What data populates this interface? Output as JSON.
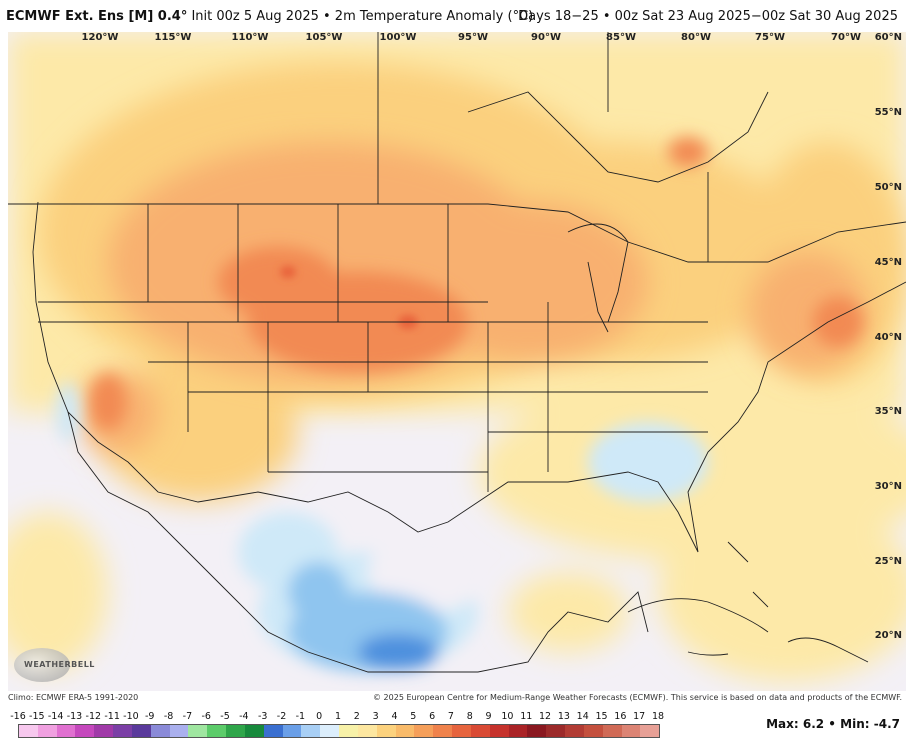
{
  "header": {
    "model": "ECMWF Ext. Ens [M] 0.4",
    "degree_sign": "°",
    "init": " Init 00z 5 Aug 2025 • 2m Temperature Anomaly (°C)",
    "valid": "Days 18−25 • 00z Sat 23 Aug 2025−00z Sat 30 Aug 2025"
  },
  "map": {
    "longitude_labels": [
      "120°W",
      "115°W",
      "110°W",
      "105°W",
      "100°W",
      "95°W",
      "90°W",
      "85°W",
      "80°W",
      "75°W",
      "70°W"
    ],
    "latitude_labels": [
      "60°N",
      "55°N",
      "50°N",
      "45°N",
      "40°N",
      "35°N",
      "30°N",
      "25°N",
      "20°N"
    ],
    "colors": {
      "near_zero": "#f3f0f6",
      "cool_light": "#cfe9f8",
      "cool": "#8fc5ef",
      "cool_strong": "#4e90de",
      "warm_pale": "#fde9a8",
      "warm_light": "#fbd07e",
      "warm": "#f8b070",
      "warm_strong": "#f28a52",
      "warm_max": "#e8623a",
      "border": "#222222"
    }
  },
  "logo": {
    "text": "WEATHERBELL"
  },
  "footer": {
    "climo": "Climo: ECMWF ERA-5 1991-2020",
    "copyright": "© 2025 European Centre for Medium-Range Weather Forecasts (ECMWF). This service is based on data and products of the ECMWF.",
    "max_label": "Max:",
    "max_value": "6.2",
    "separator": " • ",
    "min_label": "Min:",
    "min_value": "-4.7",
    "scale_labels": [
      "-16",
      "-15",
      "-14",
      "-13",
      "-12",
      "-11",
      "-10",
      "-9",
      "-8",
      "-7",
      "-6",
      "-5",
      "-4",
      "-3",
      "-2",
      "-1",
      "0",
      "1",
      "2",
      "3",
      "4",
      "5",
      "6",
      "7",
      "8",
      "9",
      "10",
      "11",
      "12",
      "13",
      "14",
      "15",
      "16",
      "17",
      "18"
    ],
    "scale_colors": [
      "#f7c8ee",
      "#f0a0e0",
      "#e070d0",
      "#c548bd",
      "#a03aa8",
      "#7b3fa6",
      "#5a3a9c",
      "#8a8ad8",
      "#aab0ee",
      "#9fe6a0",
      "#5ccc6a",
      "#2fa64a",
      "#178a3c",
      "#3a6fd0",
      "#6a9fe8",
      "#a8cff5",
      "#dceefc",
      "#f7f1a8",
      "#fde7a0",
      "#fcd27e",
      "#f9bb6a",
      "#f59f5a",
      "#ef824c",
      "#e6643e",
      "#d94a34",
      "#c6322c",
      "#aa2326",
      "#8a1820",
      "#9c2a2a",
      "#b23c34",
      "#c4503e",
      "#d06a56",
      "#dc8474",
      "#e7a096"
    ]
  }
}
